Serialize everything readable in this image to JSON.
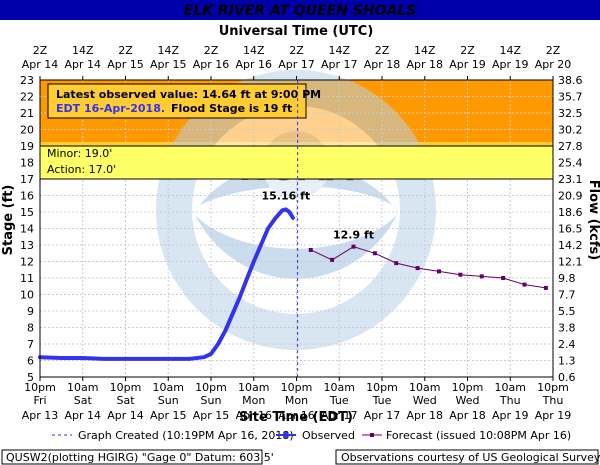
{
  "header": {
    "title": "ELK RIVER AT QUEEN SHOALS"
  },
  "axes": {
    "top_title": "Universal Time (UTC)",
    "bottom_title": "Site Time (EDT)",
    "left_title": "Stage (ft)",
    "right_title": "Flow (kcfs)"
  },
  "info_box": {
    "line1": "Latest observed value: 14.64 ft at 9:00 PM",
    "line2a": "EDT 16-Apr-2018.",
    "line2b": "Flood Stage is 19 ft"
  },
  "thresholds": {
    "minor_label": "Minor: 19.0'",
    "action_label": "Action: 17.0'"
  },
  "annotations": {
    "peak_observed": "15.16 ft",
    "peak_forecast": "12.9 ft"
  },
  "legend": {
    "created": "Graph Created (10:19PM Apr 16, 2018)",
    "observed": "Observed",
    "forecast": "Forecast (issued 10:08PM Apr 16)"
  },
  "footer": {
    "left": "QUSW2(plotting HGIRG) \"Gage 0\" Datum: 603.5'",
    "right": "Observations courtesy of US Geological Survey"
  },
  "colors": {
    "title_bg": "#0000aa",
    "observed": "#3333ee",
    "forecast": "#660066",
    "minor_band": "#ffcc33",
    "action_band": "#ffff66",
    "upper_band": "#ff9900"
  },
  "chart_data": {
    "type": "line",
    "title": "ELK RIVER AT QUEEN SHOALS",
    "xlabel": "Site Time (EDT)",
    "ylabel": "Stage (ft)",
    "y2label": "Flow (kcfs)",
    "ylim": [
      5,
      23
    ],
    "xlim": [
      "2018-04-13 22:00",
      "2018-04-19 22:00"
    ],
    "y_ticks": [
      5,
      6,
      7,
      8,
      9,
      10,
      11,
      12,
      13,
      14,
      15,
      16,
      17,
      18,
      19,
      20,
      21,
      22,
      23
    ],
    "flow_ticks": [
      "0.6",
      "1.3",
      "2.4",
      "3.8",
      "5.5",
      "7.7",
      "9.8",
      "12.1",
      "14.2",
      "16.5",
      "18.6",
      "20.9",
      "23.1",
      "25.4",
      "27.8",
      "30.2",
      "32.5",
      "35.7",
      "38.6"
    ],
    "utc_ticks": [
      {
        "time": "2Z",
        "date": "Apr 14"
      },
      {
        "time": "14Z",
        "date": "Apr 14"
      },
      {
        "time": "2Z",
        "date": "Apr 15"
      },
      {
        "time": "14Z",
        "date": "Apr 15"
      },
      {
        "time": "2Z",
        "date": "Apr 16"
      },
      {
        "time": "14Z",
        "date": "Apr 16"
      },
      {
        "time": "2Z",
        "date": "Apr 17"
      },
      {
        "time": "14Z",
        "date": "Apr 17"
      },
      {
        "time": "2Z",
        "date": "Apr 18"
      },
      {
        "time": "14Z",
        "date": "Apr 18"
      },
      {
        "time": "2Z",
        "date": "Apr 19"
      },
      {
        "time": "14Z",
        "date": "Apr 19"
      },
      {
        "time": "2Z",
        "date": "Apr 20"
      }
    ],
    "local_ticks": [
      {
        "time": "10pm",
        "day": "Fri",
        "date": "Apr 13"
      },
      {
        "time": "10am",
        "day": "Sat",
        "date": "Apr 14"
      },
      {
        "time": "10pm",
        "day": "Sat",
        "date": "Apr 14"
      },
      {
        "time": "10am",
        "day": "Sun",
        "date": "Apr 15"
      },
      {
        "time": "10pm",
        "day": "Sun",
        "date": "Apr 15"
      },
      {
        "time": "10am",
        "day": "Mon",
        "date": "Apr 16"
      },
      {
        "time": "10pm",
        "day": "Mon",
        "date": "Apr 16"
      },
      {
        "time": "10am",
        "day": "Tue",
        "date": "Apr 17"
      },
      {
        "time": "10pm",
        "day": "Tue",
        "date": "Apr 17"
      },
      {
        "time": "10am",
        "day": "Wed",
        "date": "Apr 18"
      },
      {
        "time": "10pm",
        "day": "Wed",
        "date": "Apr 18"
      },
      {
        "time": "10am",
        "day": "Thu",
        "date": "Apr 19"
      },
      {
        "time": "10pm",
        "day": "Thu",
        "date": "Apr 19"
      }
    ],
    "flood_categories": [
      {
        "name": "Minor",
        "stage": 19.0
      },
      {
        "name": "Action",
        "stage": 17.0
      }
    ],
    "graph_created": "2018-04-16 22:19",
    "series": [
      {
        "name": "Observed",
        "x": [
          "2018-04-13 22:00",
          "2018-04-14 04:00",
          "2018-04-14 10:00",
          "2018-04-14 16:00",
          "2018-04-14 22:00",
          "2018-04-15 04:00",
          "2018-04-15 10:00",
          "2018-04-15 16:00",
          "2018-04-15 20:00",
          "2018-04-15 22:00",
          "2018-04-16 00:00",
          "2018-04-16 02:00",
          "2018-04-16 04:00",
          "2018-04-16 06:00",
          "2018-04-16 08:00",
          "2018-04-16 10:00",
          "2018-04-16 12:00",
          "2018-04-16 14:00",
          "2018-04-16 16:00",
          "2018-04-16 18:00",
          "2018-04-16 19:00",
          "2018-04-16 20:00",
          "2018-04-16 21:00"
        ],
        "y": [
          6.2,
          6.15,
          6.15,
          6.1,
          6.1,
          6.1,
          6.1,
          6.1,
          6.2,
          6.4,
          7.0,
          7.8,
          8.8,
          9.8,
          10.9,
          12.0,
          13.0,
          14.0,
          14.6,
          15.1,
          15.16,
          15.0,
          14.64
        ]
      },
      {
        "name": "Forecast",
        "x": [
          "2018-04-17 02:00",
          "2018-04-17 08:00",
          "2018-04-17 14:00",
          "2018-04-17 20:00",
          "2018-04-18 02:00",
          "2018-04-18 08:00",
          "2018-04-18 14:00",
          "2018-04-18 20:00",
          "2018-04-19 02:00",
          "2018-04-19 08:00",
          "2018-04-19 14:00",
          "2018-04-19 20:00"
        ],
        "y": [
          12.7,
          12.1,
          12.9,
          12.5,
          11.9,
          11.6,
          11.4,
          11.2,
          11.1,
          11.0,
          10.6,
          10.4
        ]
      }
    ],
    "grid": true
  }
}
